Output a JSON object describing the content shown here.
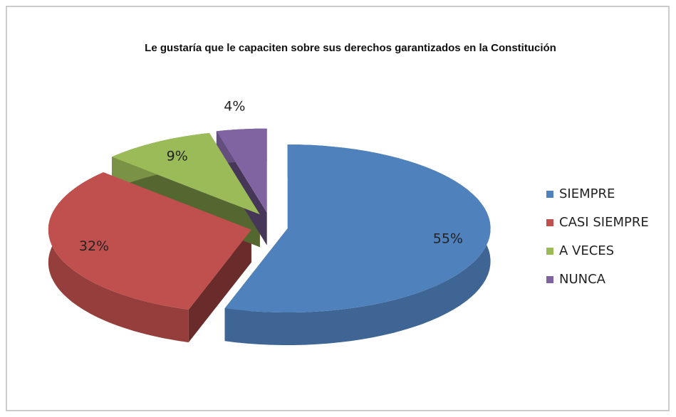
{
  "chart_data": {
    "type": "pie",
    "title": "Le gustaría que le capaciten sobre sus derechos garantizados en la Constitución",
    "categories": [
      "SIEMPRE",
      "CASI SIEMPRE",
      "A VECES",
      "NUNCA"
    ],
    "values": [
      55,
      32,
      9,
      4
    ],
    "value_labels": [
      "55%",
      "32%",
      "9%",
      "4%"
    ],
    "colors": [
      "#4f81bd",
      "#c0504d",
      "#9bbb59",
      "#8064a2"
    ],
    "legend": "right"
  }
}
